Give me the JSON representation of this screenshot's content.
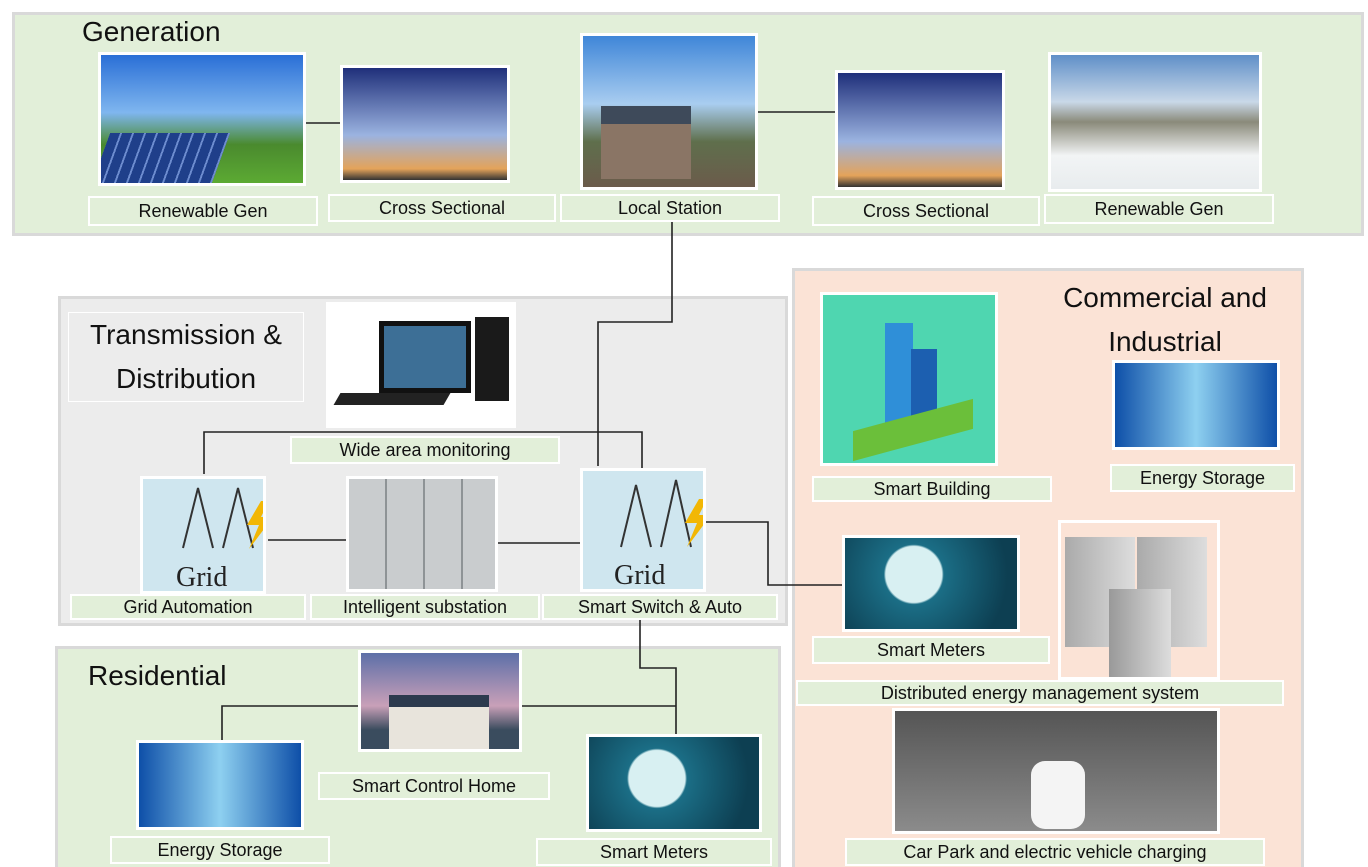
{
  "generation": {
    "title": "Generation",
    "nodes": [
      "Renewable Gen",
      "Cross Sectional",
      "Local Station",
      "Cross Sectional",
      "Renewable Gen"
    ]
  },
  "transmission": {
    "title": "Transmission & Distribution",
    "icon_label": "Grid",
    "nodes": [
      "Wide area monitoring",
      "Grid Automation",
      "Intelligent substation",
      "Smart Switch & Auto"
    ]
  },
  "commercial": {
    "title": "Commercial and Industrial",
    "nodes": [
      "Smart Building",
      "Energy Storage",
      "Smart Meters",
      "Distributed energy management system",
      "Car Park and electric vehicle charging"
    ]
  },
  "residential": {
    "title": "Residential",
    "nodes": [
      "Smart Control Home",
      "Energy Storage",
      "Smart Meters"
    ]
  }
}
